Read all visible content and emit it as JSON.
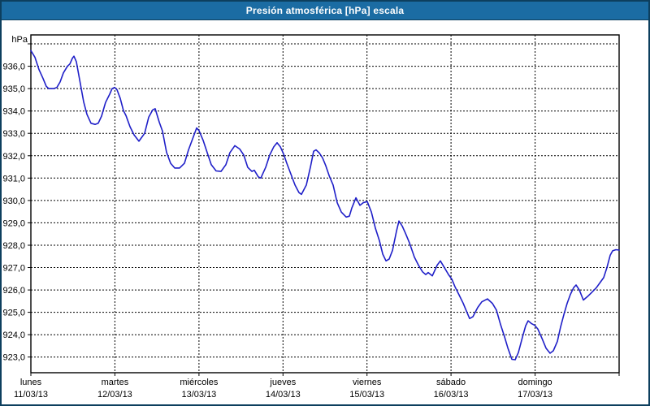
{
  "window": {
    "title": "Presión atmosférica [hPa] escala"
  },
  "colors": {
    "titlebar_bg": "#1b6ca3",
    "titlebar_text": "#ffffff",
    "window_border": "#0d3f5e",
    "background": "#ffffff",
    "line": "#1f1fc8",
    "grid": "#000000",
    "frame": "#000000",
    "text": "#000000"
  },
  "chart_data": {
    "type": "line",
    "title": "Presión atmosférica [hPa] escala",
    "unit_label": "hPa",
    "xlabel": "",
    "ylabel": "hPa",
    "grid": "dashed",
    "legend": false,
    "ylim": [
      922.3,
      937.4
    ],
    "x_range_days": 7,
    "y_ticks": [
      {
        "v": 937,
        "label": ""
      },
      {
        "v": 936,
        "label": "936,0"
      },
      {
        "v": 935,
        "label": "935,0"
      },
      {
        "v": 934,
        "label": "934,0"
      },
      {
        "v": 933,
        "label": "933,0"
      },
      {
        "v": 932,
        "label": "932,0"
      },
      {
        "v": 931,
        "label": "931,0"
      },
      {
        "v": 930,
        "label": "930,0"
      },
      {
        "v": 929,
        "label": "929,0"
      },
      {
        "v": 928,
        "label": "928,0"
      },
      {
        "v": 927,
        "label": "927,0"
      },
      {
        "v": 926,
        "label": "926,0"
      },
      {
        "v": 925,
        "label": "925,0"
      },
      {
        "v": 924,
        "label": "924,0"
      },
      {
        "v": 923,
        "label": "923,0"
      }
    ],
    "x_days": [
      {
        "name": "lunes",
        "date": "11/03/13"
      },
      {
        "name": "martes",
        "date": "12/03/13"
      },
      {
        "name": "miércoles",
        "date": "13/03/13"
      },
      {
        "name": "jueves",
        "date": "14/03/13"
      },
      {
        "name": "viernes",
        "date": "15/03/13"
      },
      {
        "name": "sábado",
        "date": "16/03/13"
      },
      {
        "name": "domingo",
        "date": "17/03/13"
      }
    ],
    "series": [
      {
        "name": "Presión atmosférica",
        "points": [
          [
            0.0,
            936.7
          ],
          [
            0.048,
            936.4
          ],
          [
            0.097,
            935.85
          ],
          [
            0.145,
            935.45
          ],
          [
            0.184,
            935.1
          ],
          [
            0.213,
            935.0
          ],
          [
            0.271,
            935.0
          ],
          [
            0.309,
            935.05
          ],
          [
            0.348,
            935.3
          ],
          [
            0.387,
            935.7
          ],
          [
            0.435,
            936.0
          ],
          [
            0.464,
            936.1
          ],
          [
            0.493,
            936.35
          ],
          [
            0.512,
            936.45
          ],
          [
            0.541,
            936.2
          ],
          [
            0.57,
            935.6
          ],
          [
            0.599,
            935.0
          ],
          [
            0.628,
            934.4
          ],
          [
            0.667,
            933.85
          ],
          [
            0.715,
            933.45
          ],
          [
            0.764,
            933.4
          ],
          [
            0.802,
            933.45
          ],
          [
            0.841,
            933.77
          ],
          [
            0.889,
            934.38
          ],
          [
            0.938,
            934.75
          ],
          [
            0.967,
            935.0
          ],
          [
            0.996,
            935.05
          ],
          [
            1.025,
            934.95
          ],
          [
            1.064,
            934.56
          ],
          [
            1.102,
            934.01
          ],
          [
            1.131,
            933.8
          ],
          [
            1.18,
            933.3
          ],
          [
            1.228,
            932.93
          ],
          [
            1.286,
            932.65
          ],
          [
            1.354,
            933.0
          ],
          [
            1.402,
            933.72
          ],
          [
            1.45,
            934.05
          ],
          [
            1.479,
            934.1
          ],
          [
            1.528,
            933.5
          ],
          [
            1.566,
            933.1
          ],
          [
            1.615,
            932.15
          ],
          [
            1.663,
            931.66
          ],
          [
            1.711,
            931.45
          ],
          [
            1.769,
            931.45
          ],
          [
            1.827,
            931.66
          ],
          [
            1.876,
            932.26
          ],
          [
            1.924,
            932.75
          ],
          [
            1.972,
            933.24
          ],
          [
            2.001,
            933.12
          ],
          [
            2.05,
            932.69
          ],
          [
            2.098,
            932.14
          ],
          [
            2.146,
            931.6
          ],
          [
            2.204,
            931.32
          ],
          [
            2.262,
            931.3
          ],
          [
            2.32,
            931.6
          ],
          [
            2.369,
            932.14
          ],
          [
            2.427,
            932.45
          ],
          [
            2.485,
            932.3
          ],
          [
            2.533,
            932.03
          ],
          [
            2.581,
            931.48
          ],
          [
            2.63,
            931.3
          ],
          [
            2.659,
            931.35
          ],
          [
            2.707,
            931.05
          ],
          [
            2.736,
            931.0
          ],
          [
            2.794,
            931.48
          ],
          [
            2.843,
            932.03
          ],
          [
            2.891,
            932.4
          ],
          [
            2.93,
            932.58
          ],
          [
            2.968,
            932.4
          ],
          [
            3.007,
            932.08
          ],
          [
            3.046,
            931.66
          ],
          [
            3.094,
            931.18
          ],
          [
            3.143,
            930.69
          ],
          [
            3.191,
            930.35
          ],
          [
            3.22,
            930.27
          ],
          [
            3.278,
            930.69
          ],
          [
            3.326,
            931.48
          ],
          [
            3.365,
            932.2
          ],
          [
            3.394,
            932.26
          ],
          [
            3.433,
            932.12
          ],
          [
            3.471,
            931.9
          ],
          [
            3.51,
            931.55
          ],
          [
            3.549,
            931.11
          ],
          [
            3.597,
            930.69
          ],
          [
            3.645,
            929.9
          ],
          [
            3.694,
            929.48
          ],
          [
            3.752,
            929.26
          ],
          [
            3.79,
            929.3
          ],
          [
            3.819,
            929.66
          ],
          [
            3.868,
            930.12
          ],
          [
            3.916,
            929.78
          ],
          [
            3.955,
            929.9
          ],
          [
            4.003,
            929.95
          ],
          [
            4.052,
            929.48
          ],
          [
            4.1,
            928.75
          ],
          [
            4.148,
            928.2
          ],
          [
            4.187,
            927.6
          ],
          [
            4.226,
            927.3
          ],
          [
            4.264,
            927.38
          ],
          [
            4.303,
            927.77
          ],
          [
            4.351,
            928.63
          ],
          [
            4.38,
            929.08
          ],
          [
            4.419,
            928.85
          ],
          [
            4.458,
            928.53
          ],
          [
            4.506,
            928.1
          ],
          [
            4.564,
            927.47
          ],
          [
            4.612,
            927.11
          ],
          [
            4.661,
            926.81
          ],
          [
            4.699,
            926.69
          ],
          [
            4.728,
            926.78
          ],
          [
            4.777,
            926.63
          ],
          [
            4.835,
            927.11
          ],
          [
            4.873,
            927.3
          ],
          [
            4.922,
            926.99
          ],
          [
            4.97,
            926.69
          ],
          [
            5.009,
            926.48
          ],
          [
            5.047,
            926.14
          ],
          [
            5.096,
            925.77
          ],
          [
            5.144,
            925.41
          ],
          [
            5.183,
            925.05
          ],
          [
            5.221,
            924.72
          ],
          [
            5.26,
            924.8
          ],
          [
            5.318,
            925.22
          ],
          [
            5.366,
            925.47
          ],
          [
            5.434,
            925.6
          ],
          [
            5.492,
            925.4
          ],
          [
            5.54,
            925.1
          ],
          [
            5.589,
            924.45
          ],
          [
            5.637,
            923.9
          ],
          [
            5.676,
            923.4
          ],
          [
            5.724,
            922.9
          ],
          [
            5.763,
            922.88
          ],
          [
            5.801,
            923.2
          ],
          [
            5.85,
            923.9
          ],
          [
            5.888,
            924.4
          ],
          [
            5.917,
            924.62
          ],
          [
            5.956,
            924.5
          ],
          [
            5.995,
            924.42
          ],
          [
            6.033,
            924.25
          ],
          [
            6.082,
            923.83
          ],
          [
            6.13,
            923.4
          ],
          [
            6.178,
            923.17
          ],
          [
            6.217,
            923.28
          ],
          [
            6.265,
            923.7
          ],
          [
            6.304,
            924.35
          ],
          [
            6.343,
            924.9
          ],
          [
            6.381,
            925.4
          ],
          [
            6.42,
            925.8
          ],
          [
            6.459,
            926.1
          ],
          [
            6.488,
            926.22
          ],
          [
            6.526,
            926.0
          ],
          [
            6.575,
            925.55
          ],
          [
            6.623,
            925.7
          ],
          [
            6.671,
            925.88
          ],
          [
            6.729,
            926.1
          ],
          [
            6.778,
            926.35
          ],
          [
            6.816,
            926.55
          ],
          [
            6.855,
            927.0
          ],
          [
            6.894,
            927.55
          ],
          [
            6.923,
            927.75
          ],
          [
            6.962,
            927.8
          ],
          [
            7.0,
            927.78
          ]
        ]
      }
    ]
  }
}
